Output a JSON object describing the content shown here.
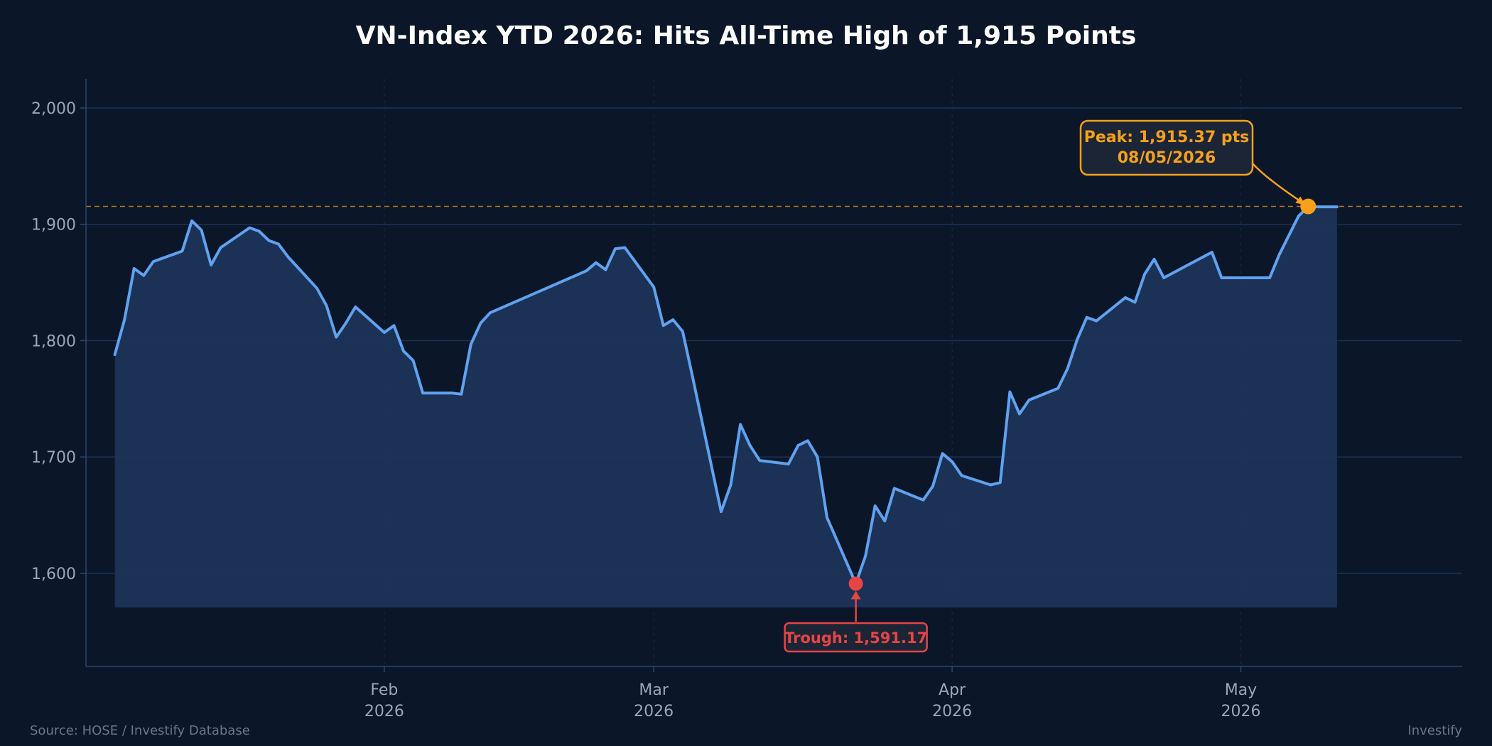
{
  "footer": {
    "source": "Source: HOSE / Investify Database",
    "brand": "Investify"
  },
  "colors": {
    "background": "#0b1628",
    "grid": "#1c3357",
    "line": "#5fa2f0",
    "fill": "#1c3357",
    "peak": "#f5a11c",
    "trough": "#e64545",
    "axis_text": "#9aa7b8"
  },
  "chart_data": {
    "type": "line",
    "title": "VN-Index YTD 2026: Hits All-Time High of 1,915 Points",
    "xlabel": "",
    "ylabel": "",
    "ylim": [
      1520,
      2025
    ],
    "xlim": [
      "2026-01-01",
      "2026-05-24"
    ],
    "grid": true,
    "y_ticks": [
      {
        "value": 1600,
        "label": "1,600"
      },
      {
        "value": 1700,
        "label": "1,700"
      },
      {
        "value": 1800,
        "label": "1,800"
      },
      {
        "value": 1900,
        "label": "1,900"
      },
      {
        "value": 2000,
        "label": "2,000"
      }
    ],
    "x_ticks": [
      {
        "date": "2026-02-01",
        "label": "Feb",
        "sublabel": "2026"
      },
      {
        "date": "2026-03-01",
        "label": "Mar",
        "sublabel": "2026"
      },
      {
        "date": "2026-04-01",
        "label": "Apr",
        "sublabel": "2026"
      },
      {
        "date": "2026-05-01",
        "label": "May",
        "sublabel": "2026"
      }
    ],
    "series": [
      {
        "points": [
          [
            "2026-01-04",
            1788
          ],
          [
            "2026-01-05",
            1818
          ],
          [
            "2026-01-06",
            1862
          ],
          [
            "2026-01-07",
            1856
          ],
          [
            "2026-01-08",
            1868
          ],
          [
            "2026-01-11",
            1877
          ],
          [
            "2026-01-12",
            1903
          ],
          [
            "2026-01-13",
            1895
          ],
          [
            "2026-01-14",
            1865
          ],
          [
            "2026-01-15",
            1880
          ],
          [
            "2026-01-18",
            1897
          ],
          [
            "2026-01-19",
            1894
          ],
          [
            "2026-01-20",
            1886
          ],
          [
            "2026-01-21",
            1883
          ],
          [
            "2026-01-22",
            1872
          ],
          [
            "2026-01-25",
            1845
          ],
          [
            "2026-01-26",
            1830
          ],
          [
            "2026-01-27",
            1803
          ],
          [
            "2026-01-28",
            1815
          ],
          [
            "2026-01-29",
            1829
          ],
          [
            "2026-02-01",
            1807
          ],
          [
            "2026-02-02",
            1813
          ],
          [
            "2026-02-03",
            1791
          ],
          [
            "2026-02-04",
            1783
          ],
          [
            "2026-02-05",
            1755
          ],
          [
            "2026-02-08",
            1755
          ],
          [
            "2026-02-09",
            1754
          ],
          [
            "2026-02-10",
            1797
          ],
          [
            "2026-02-11",
            1815
          ],
          [
            "2026-02-12",
            1824
          ],
          [
            "2026-02-22",
            1860
          ],
          [
            "2026-02-23",
            1867
          ],
          [
            "2026-02-24",
            1861
          ],
          [
            "2026-02-25",
            1879
          ],
          [
            "2026-02-26",
            1880
          ],
          [
            "2026-03-01",
            1846
          ],
          [
            "2026-03-02",
            1813
          ],
          [
            "2026-03-03",
            1818
          ],
          [
            "2026-03-04",
            1808
          ],
          [
            "2026-03-05",
            1770
          ],
          [
            "2026-03-08",
            1653
          ],
          [
            "2026-03-09",
            1676
          ],
          [
            "2026-03-10",
            1728
          ],
          [
            "2026-03-11",
            1710
          ],
          [
            "2026-03-12",
            1697
          ],
          [
            "2026-03-15",
            1694
          ],
          [
            "2026-03-16",
            1710
          ],
          [
            "2026-03-17",
            1714
          ],
          [
            "2026-03-18",
            1700
          ],
          [
            "2026-03-19",
            1648
          ],
          [
            "2026-03-22",
            1591.17
          ],
          [
            "2026-03-23",
            1615
          ],
          [
            "2026-03-24",
            1658
          ],
          [
            "2026-03-25",
            1645
          ],
          [
            "2026-03-26",
            1673
          ],
          [
            "2026-03-29",
            1663
          ],
          [
            "2026-03-30",
            1675
          ],
          [
            "2026-03-31",
            1703
          ],
          [
            "2026-04-01",
            1696
          ],
          [
            "2026-04-02",
            1684
          ],
          [
            "2026-04-05",
            1676
          ],
          [
            "2026-04-06",
            1678
          ],
          [
            "2026-04-07",
            1756
          ],
          [
            "2026-04-08",
            1737
          ],
          [
            "2026-04-09",
            1749
          ],
          [
            "2026-04-12",
            1759
          ],
          [
            "2026-04-13",
            1776
          ],
          [
            "2026-04-14",
            1801
          ],
          [
            "2026-04-15",
            1820
          ],
          [
            "2026-04-16",
            1817
          ],
          [
            "2026-04-19",
            1837
          ],
          [
            "2026-04-20",
            1833
          ],
          [
            "2026-04-21",
            1857
          ],
          [
            "2026-04-22",
            1870
          ],
          [
            "2026-04-23",
            1854
          ],
          [
            "2026-04-28",
            1876
          ],
          [
            "2026-04-29",
            1854
          ],
          [
            "2026-05-04",
            1854
          ],
          [
            "2026-05-05",
            1874
          ],
          [
            "2026-05-07",
            1907
          ],
          [
            "2026-05-08",
            1915.37
          ],
          [
            "2026-05-09",
            1915
          ],
          [
            "2026-05-11",
            1915
          ]
        ]
      }
    ],
    "reference_line": {
      "value": 1915.37
    },
    "annotations": {
      "peak": {
        "date": "2026-05-08",
        "value": 1915.37,
        "line1": "Peak: 1,915.37 pts",
        "line2": "08/05/2026"
      },
      "trough": {
        "date": "2026-03-22",
        "value": 1591.17,
        "text": "Trough: 1,591.17"
      }
    }
  }
}
